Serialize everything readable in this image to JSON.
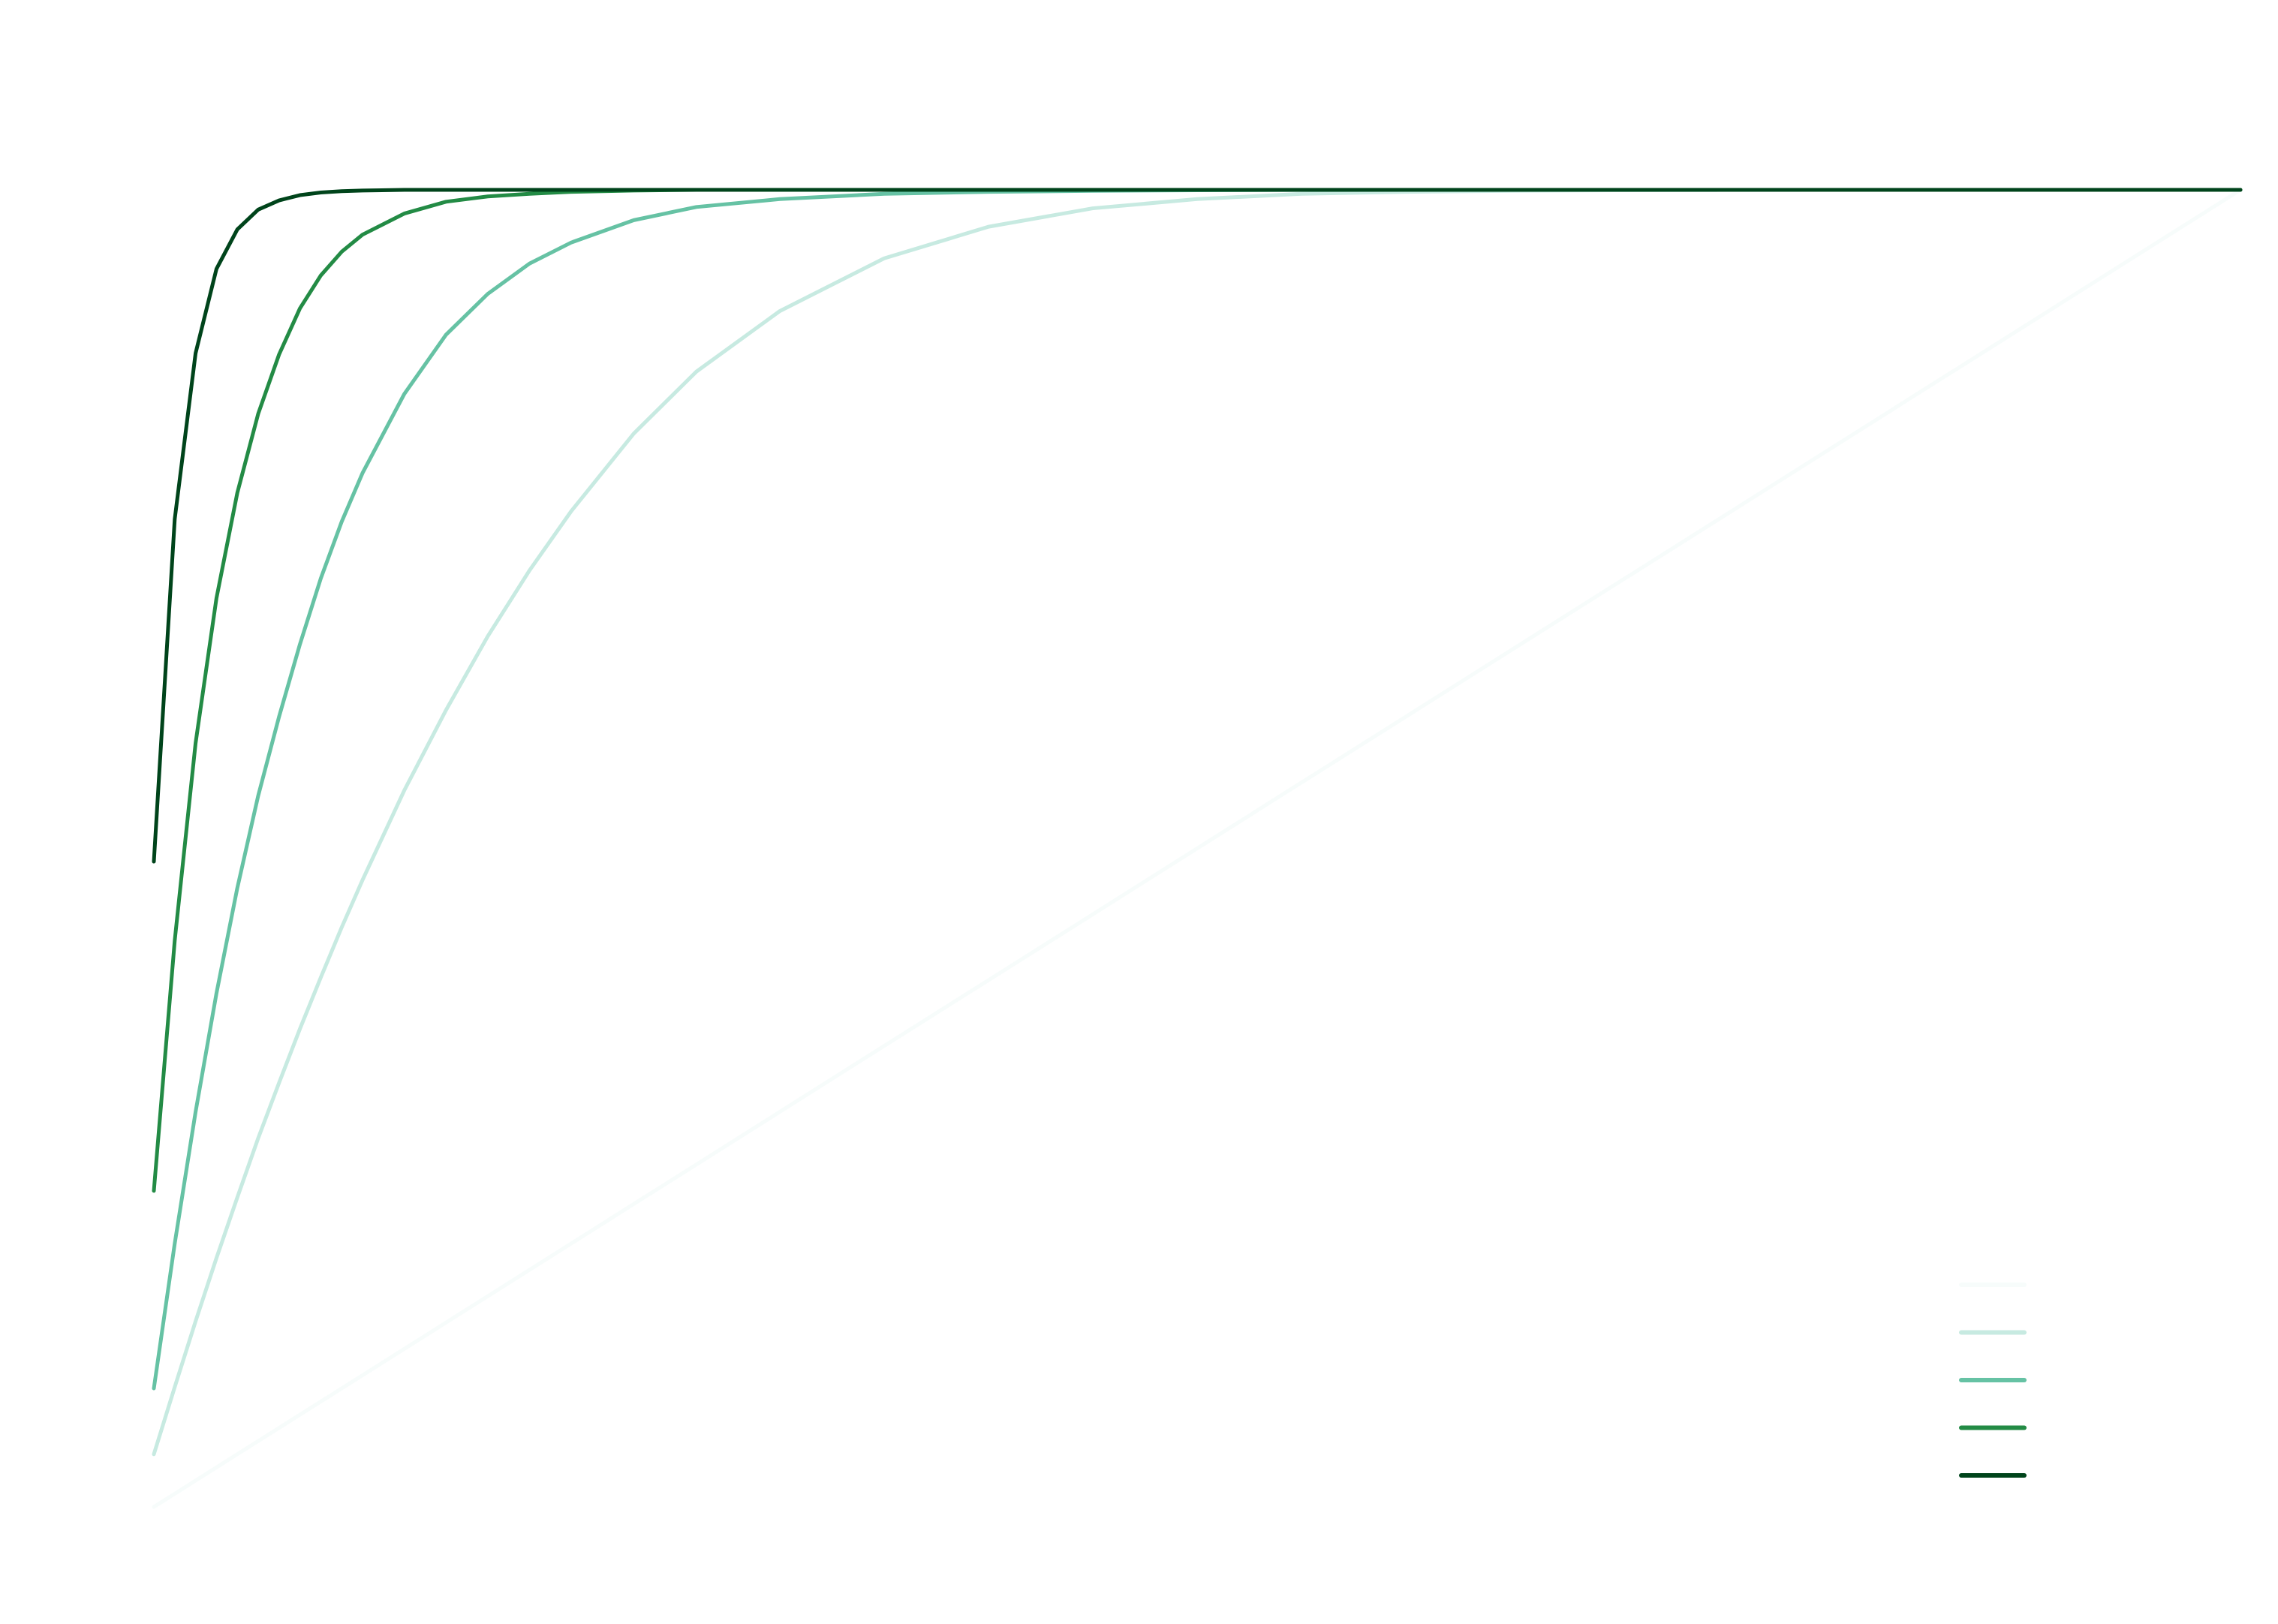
{
  "chart_data": {
    "type": "line",
    "title": "",
    "xlabel": "",
    "ylabel": "",
    "xlim": [
      0,
      1
    ],
    "ylim": [
      0,
      1
    ],
    "grid": false,
    "legend_position": "bottom-right",
    "x": [
      0,
      0.01,
      0.02,
      0.03,
      0.04,
      0.05,
      0.06,
      0.07,
      0.08,
      0.09,
      0.1,
      0.12,
      0.14,
      0.16,
      0.18,
      0.2,
      0.23,
      0.26,
      0.3,
      0.35,
      0.4,
      0.45,
      0.5,
      0.55,
      0.6,
      0.65,
      0.7,
      0.75,
      0.8,
      0.85,
      0.9,
      0.95,
      1
    ],
    "series": [
      {
        "color": "#f7fcfb",
        "values": [
          0,
          0.01,
          0.02,
          0.03,
          0.04,
          0.05,
          0.06,
          0.07,
          0.08,
          0.09,
          0.1,
          0.12,
          0.14,
          0.16,
          0.18,
          0.2,
          0.23,
          0.26,
          0.3,
          0.35,
          0.4,
          0.45,
          0.5,
          0.55,
          0.6,
          0.65,
          0.7,
          0.75,
          0.8,
          0.85,
          0.9,
          0.95,
          1
        ]
      },
      {
        "color": "#c7eae1",
        "values": [
          0.04,
          0.091,
          0.141,
          0.189,
          0.235,
          0.28,
          0.322,
          0.363,
          0.402,
          0.44,
          0.476,
          0.544,
          0.605,
          0.661,
          0.711,
          0.756,
          0.815,
          0.862,
          0.908,
          0.948,
          0.972,
          0.986,
          0.993,
          0.997,
          0.9985,
          0.9993,
          0.9997,
          0.9999,
          1,
          1,
          1,
          1,
          1
        ]
      },
      {
        "color": "#66c2a4",
        "values": [
          0.09,
          0.2,
          0.3,
          0.39,
          0.47,
          0.54,
          0.6,
          0.655,
          0.705,
          0.748,
          0.785,
          0.845,
          0.89,
          0.921,
          0.944,
          0.96,
          0.977,
          0.987,
          0.993,
          0.997,
          0.9985,
          0.9993,
          0.9997,
          0.9999,
          1,
          1,
          1,
          1,
          1,
          1,
          1,
          1,
          1
        ]
      },
      {
        "color": "#238b45",
        "values": [
          0.24,
          0.43,
          0.58,
          0.69,
          0.77,
          0.83,
          0.875,
          0.91,
          0.935,
          0.953,
          0.966,
          0.982,
          0.991,
          0.995,
          0.997,
          0.9985,
          0.9995,
          1,
          1,
          1,
          1,
          1,
          1,
          1,
          1,
          1,
          1,
          1,
          1,
          1,
          1,
          1,
          1
        ]
      },
      {
        "color": "#00441b",
        "values": [
          0.49,
          0.75,
          0.876,
          0.94,
          0.97,
          0.985,
          0.992,
          0.996,
          0.998,
          0.999,
          0.9995,
          1,
          1,
          1,
          1,
          1,
          1,
          1,
          1,
          1,
          1,
          1,
          1,
          1,
          1,
          1,
          1,
          1,
          1,
          1,
          1,
          1,
          1
        ]
      }
    ]
  }
}
